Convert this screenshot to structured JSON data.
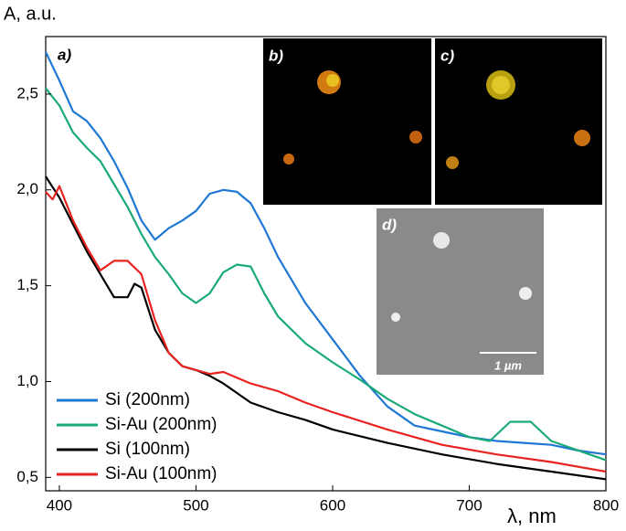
{
  "chart_data": {
    "type": "line",
    "y_label": "A, a.u.",
    "x_label": "λ, nm",
    "xlim": [
      390,
      800
    ],
    "xticks": [
      400,
      500,
      600,
      700,
      800
    ],
    "ylim": [
      0.43,
      2.8
    ],
    "yticks": [
      {
        "value": 0.5,
        "label": "0,5"
      },
      {
        "value": 1.0,
        "label": "1,0"
      },
      {
        "value": 1.5,
        "label": "1,5"
      },
      {
        "value": 2.0,
        "label": "2,0"
      },
      {
        "value": 2.5,
        "label": "2,5"
      }
    ],
    "legend": "bottom-left",
    "annotations": [
      "a)",
      "b)",
      "c)",
      "d)",
      "1 µm"
    ],
    "series": [
      {
        "name": "Si (200nm)",
        "color": "#1f77d4",
        "x": [
          390,
          400,
          410,
          420,
          430,
          440,
          450,
          460,
          470,
          480,
          490,
          500,
          510,
          520,
          530,
          540,
          550,
          560,
          580,
          600,
          620,
          640,
          660,
          680,
          700,
          720,
          740,
          760,
          780,
          800
        ],
        "values": [
          2.72,
          2.57,
          2.41,
          2.36,
          2.27,
          2.15,
          2.01,
          1.84,
          1.74,
          1.8,
          1.84,
          1.89,
          1.98,
          2.0,
          1.99,
          1.93,
          1.8,
          1.65,
          1.41,
          1.22,
          1.03,
          0.87,
          0.77,
          0.74,
          0.71,
          0.69,
          0.68,
          0.67,
          0.64,
          0.62
        ]
      },
      {
        "name": "Si-Au (200nm)",
        "color": "#1aaa78",
        "x": [
          390,
          400,
          410,
          420,
          430,
          440,
          450,
          460,
          470,
          480,
          490,
          500,
          510,
          520,
          530,
          540,
          550,
          560,
          580,
          600,
          620,
          640,
          660,
          680,
          700,
          715,
          730,
          745,
          760,
          780,
          800
        ],
        "values": [
          2.53,
          2.44,
          2.3,
          2.22,
          2.15,
          2.03,
          1.91,
          1.77,
          1.65,
          1.56,
          1.46,
          1.41,
          1.46,
          1.57,
          1.61,
          1.6,
          1.46,
          1.34,
          1.2,
          1.1,
          1.01,
          0.91,
          0.83,
          0.77,
          0.71,
          0.69,
          0.79,
          0.79,
          0.69,
          0.64,
          0.59
        ]
      },
      {
        "name": "Si (100nm)",
        "color": "#000000",
        "x": [
          390,
          400,
          410,
          420,
          430,
          440,
          450,
          455,
          460,
          470,
          480,
          490,
          500,
          510,
          520,
          540,
          560,
          580,
          600,
          640,
          680,
          720,
          760,
          800
        ],
        "values": [
          2.07,
          1.96,
          1.82,
          1.68,
          1.56,
          1.44,
          1.44,
          1.51,
          1.49,
          1.27,
          1.15,
          1.08,
          1.06,
          1.03,
          0.99,
          0.89,
          0.84,
          0.8,
          0.75,
          0.68,
          0.62,
          0.57,
          0.53,
          0.49
        ]
      },
      {
        "name": "Si-Au (100nm)",
        "color": "#e8231f",
        "x": [
          390,
          395,
          400,
          410,
          420,
          430,
          440,
          450,
          460,
          470,
          480,
          490,
          500,
          510,
          520,
          540,
          560,
          580,
          600,
          640,
          680,
          720,
          760,
          800
        ],
        "values": [
          1.99,
          1.95,
          2.02,
          1.84,
          1.7,
          1.58,
          1.63,
          1.63,
          1.56,
          1.32,
          1.15,
          1.08,
          1.06,
          1.04,
          1.05,
          0.99,
          0.95,
          0.89,
          0.84,
          0.75,
          0.67,
          0.62,
          0.58,
          0.53
        ]
      }
    ]
  }
}
